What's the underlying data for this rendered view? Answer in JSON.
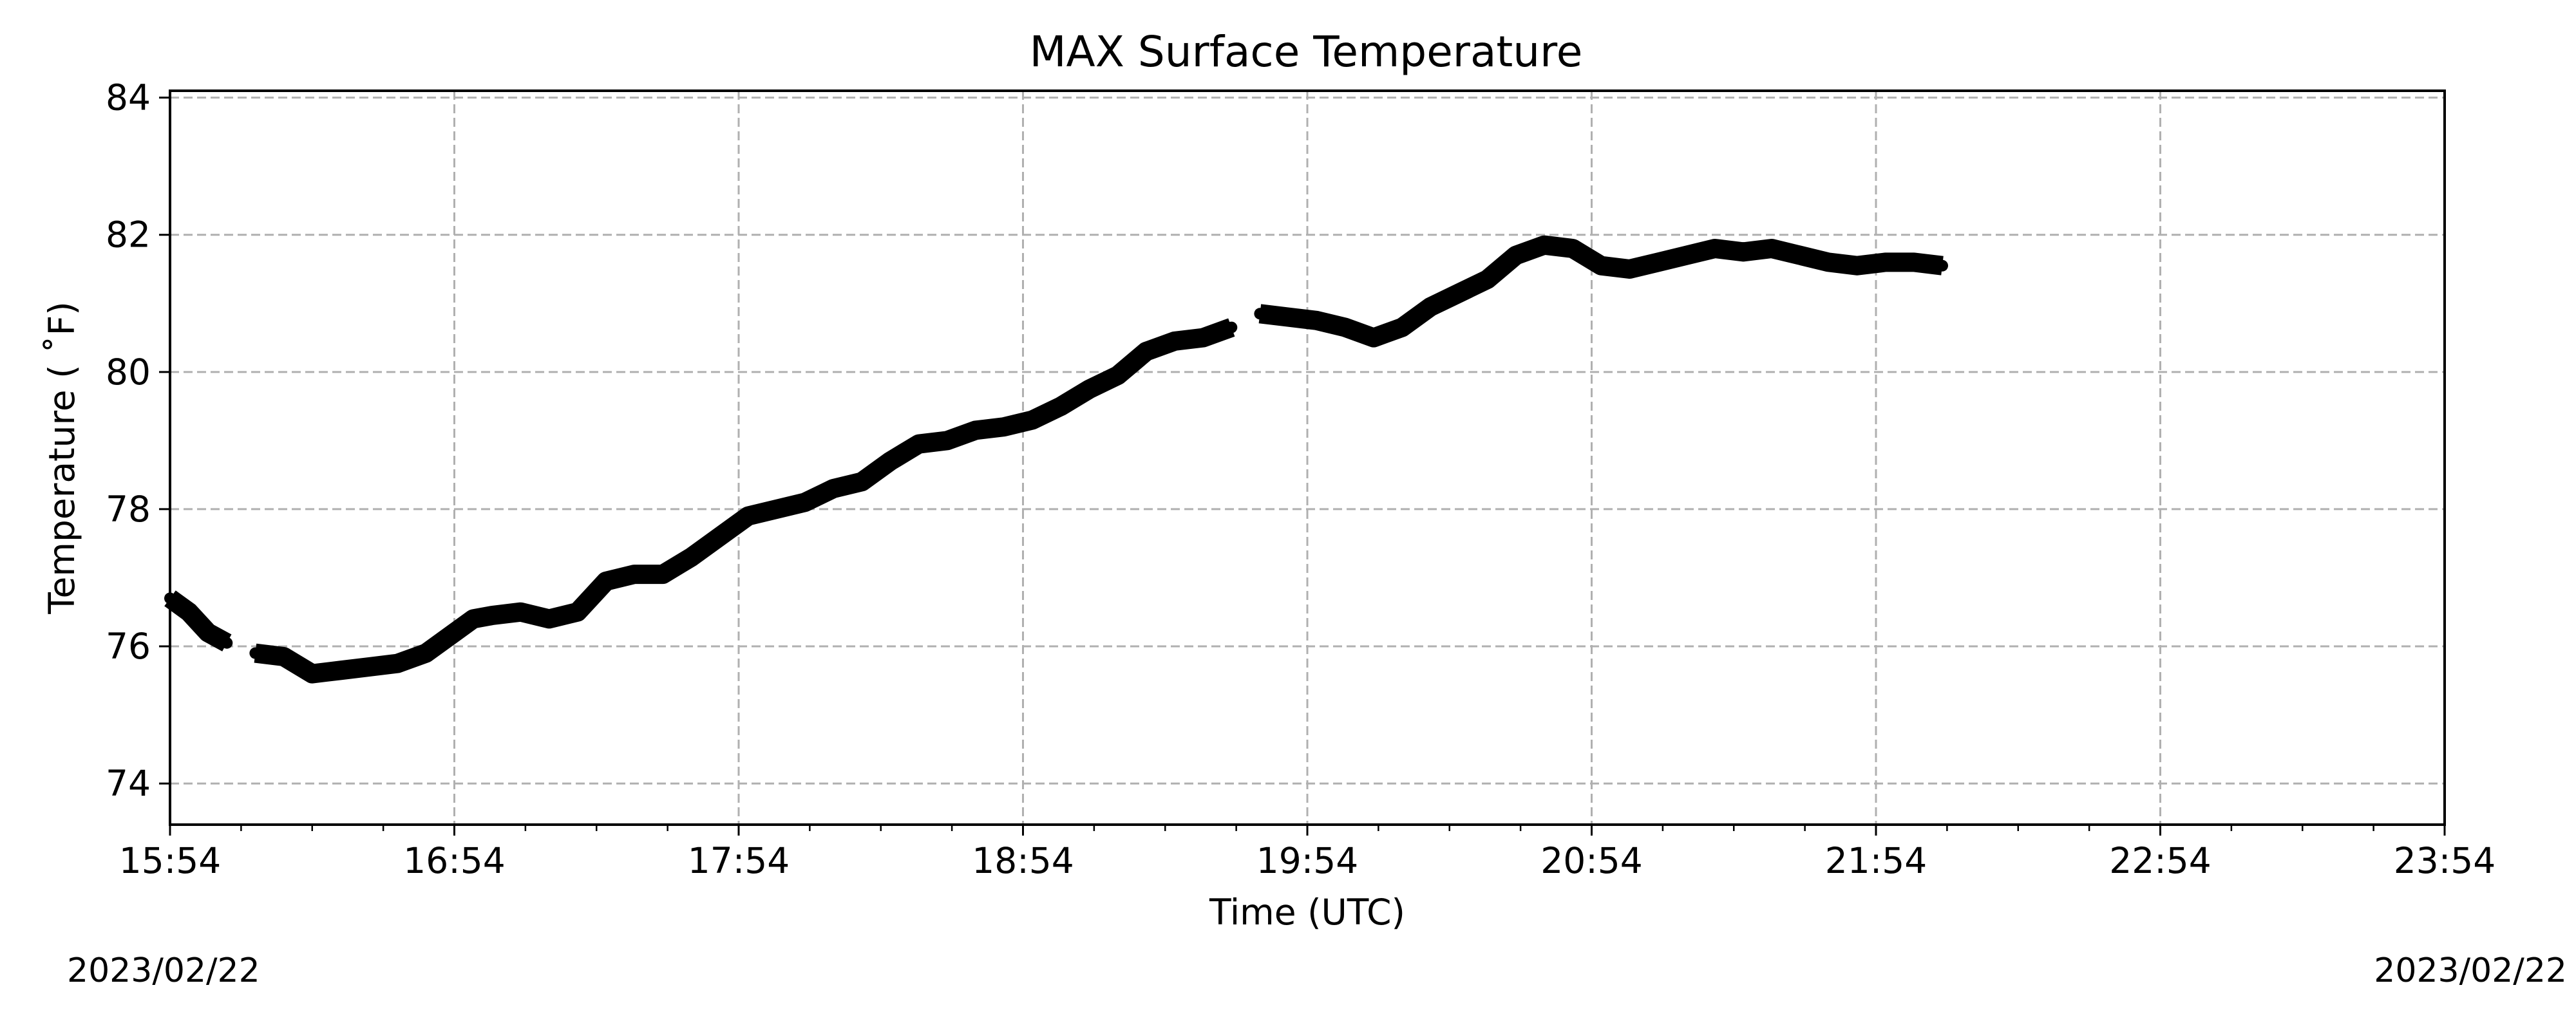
{
  "chart_data": {
    "type": "line",
    "title": "MAX Surface Temperature",
    "xlabel": "Time (UTC)",
    "ylabel": "Temperature ($^\\circ$F)",
    "ylabel_display": "Temperature ( ˚F)",
    "x_tick_labels": [
      "15:54",
      "16:54",
      "17:54",
      "18:54",
      "19:54",
      "20:54",
      "21:54",
      "22:54",
      "23:54"
    ],
    "y_ticks": [
      74,
      76,
      78,
      80,
      82,
      84
    ],
    "xlim": [
      "15:54",
      "23:54"
    ],
    "ylim": [
      73.4,
      84.1
    ],
    "grid": true,
    "x_minor_ticks_per_major": 3,
    "series": [
      {
        "color": "#000000",
        "segments": [
          {
            "x": [
              "15:54",
              "15:58",
              "16:02",
              "16:06"
            ],
            "y": [
              76.7,
              76.5,
              76.2,
              76.05
            ]
          },
          {
            "x": [
              "16:12",
              "16:18",
              "16:24",
              "16:30",
              "16:36",
              "16:42",
              "16:48",
              "16:54",
              "16:58",
              "17:02",
              "17:08",
              "17:14",
              "17:20",
              "17:26",
              "17:32",
              "17:38",
              "17:44",
              "17:50",
              "17:56",
              "18:02",
              "18:08",
              "18:14",
              "18:20",
              "18:26",
              "18:32",
              "18:38",
              "18:44",
              "18:50",
              "18:56",
              "19:02",
              "19:08",
              "19:14",
              "19:20",
              "19:26",
              "19:32",
              "19:38"
            ],
            "y": [
              75.9,
              75.85,
              75.6,
              75.65,
              75.7,
              75.75,
              75.9,
              76.2,
              76.4,
              76.45,
              76.5,
              76.4,
              76.5,
              76.95,
              77.05,
              77.05,
              77.3,
              77.6,
              77.9,
              78.0,
              78.1,
              78.3,
              78.4,
              78.7,
              78.95,
              79.0,
              79.15,
              79.2,
              79.3,
              79.5,
              79.75,
              79.95,
              80.3,
              80.45,
              80.5,
              80.65
            ]
          },
          {
            "x": [
              "19:44",
              "19:50",
              "19:56",
              "20:02",
              "20:08",
              "20:14",
              "20:20",
              "20:26",
              "20:32",
              "20:38",
              "20:44",
              "20:50",
              "20:56",
              "21:02",
              "21:08",
              "21:14",
              "21:20",
              "21:26",
              "21:32",
              "21:38",
              "21:44",
              "21:50",
              "21:56",
              "22:02",
              "22:08"
            ],
            "y": [
              80.85,
              80.8,
              80.75,
              80.65,
              80.5,
              80.65,
              80.95,
              81.15,
              81.35,
              81.7,
              81.85,
              81.8,
              81.55,
              81.5,
              81.6,
              81.7,
              81.8,
              81.75,
              81.8,
              81.7,
              81.6,
              81.55,
              81.6,
              81.6,
              81.55
            ]
          }
        ]
      }
    ]
  },
  "footer": {
    "start_date": "2023/02/22",
    "end_date": "2023/02/22"
  }
}
